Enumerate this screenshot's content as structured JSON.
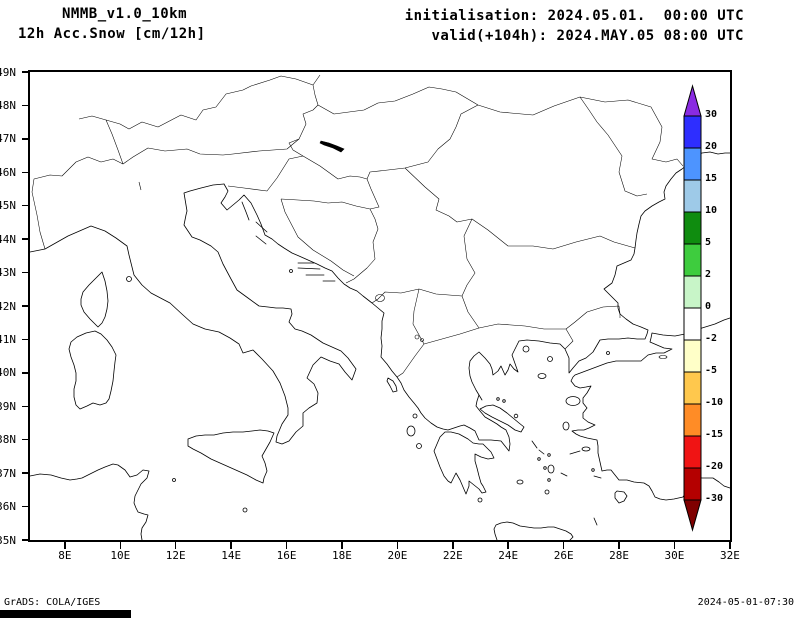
{
  "header": {
    "line1": "NMMB_v1.0_10km",
    "line2": "12h Acc.Snow [cm/12h]",
    "init": "initialisation: 2024.05.01.  00:00 UTC",
    "valid": "valid(+104h): 2024.MAY.05 08:00 UTC"
  },
  "axes": {
    "lat_labels": [
      "49N",
      "48N",
      "47N",
      "46N",
      "45N",
      "44N",
      "43N",
      "42N",
      "41N",
      "40N",
      "39N",
      "38N",
      "37N",
      "36N",
      "35N"
    ],
    "lon_labels": [
      "8E",
      "10E",
      "12E",
      "14E",
      "16E",
      "18E",
      "20E",
      "22E",
      "24E",
      "26E",
      "28E",
      "30E",
      "32E"
    ]
  },
  "colorbar": {
    "labels": [
      "30",
      "20",
      "15",
      "10",
      "5",
      "2",
      "0",
      "-2",
      "-5",
      "-10",
      "-15",
      "-20",
      "-30"
    ],
    "top_arrow_color": "#8a2be2",
    "bottom_arrow_color": "#7f0000",
    "segment_colors": [
      "#2e2eff",
      "#4d94ff",
      "#9ecae8",
      "#0f8c0f",
      "#3ecc3e",
      "#c8f5c8",
      "#ffffff",
      "#ffffc8",
      "#ffc84d",
      "#ff8c26",
      "#f01414",
      "#b40000"
    ]
  },
  "footer": {
    "credit": "GrADS: COLA/IGES",
    "timestamp": "2024-05-01-07:30"
  },
  "chart_data": {
    "type": "map",
    "title": "12h Acc.Snow [cm/12h]",
    "model": "NMMB_v1.0_10km",
    "initialisation": "2024.05.01. 00:00 UTC",
    "valid": "valid(+104h) 2024.MAY.05 08:00 UTC",
    "lon_ticks_deg_east": [
      8,
      10,
      12,
      14,
      16,
      18,
      20,
      22,
      24,
      26,
      28,
      30,
      32
    ],
    "lat_ticks_deg_north": [
      49,
      48,
      47,
      46,
      45,
      44,
      43,
      42,
      41,
      40,
      39,
      38,
      37,
      36,
      35
    ],
    "colorbar_levels_cm": [
      30,
      20,
      15,
      10,
      5,
      2,
      0,
      -2,
      -5,
      -10,
      -15,
      -20,
      -30
    ],
    "shaded_values": "none visible (no snow accumulation shaded in domain)"
  }
}
